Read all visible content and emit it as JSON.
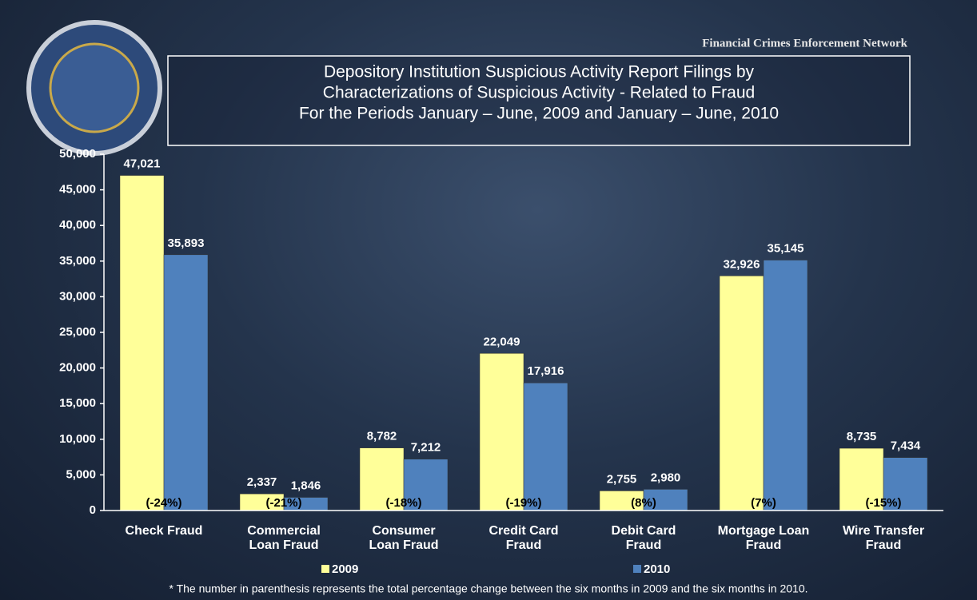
{
  "chart_data": {
    "type": "bar",
    "header": "Financial Crimes Enforcement Network",
    "title": [
      "Depository Institution Suspicious Activity Report Filings by",
      "Characterizations of Suspicious Activity - Related to Fraud",
      "For the Periods January – June, 2009 and January – June, 2010"
    ],
    "categories": [
      "Check Fraud",
      "Commercial\nLoan Fraud",
      "Consumer\nLoan Fraud",
      "Credit Card\nFraud",
      "Debit Card\nFraud",
      "Mortgage Loan\nFraud",
      "Wire Transfer\nFraud"
    ],
    "series": [
      {
        "name": "2009",
        "color": "#ffff99",
        "values": [
          47021,
          2337,
          8782,
          22049,
          2755,
          32926,
          8735
        ],
        "value_labels": [
          "47,021",
          "2,337",
          "8,782",
          "22,049",
          "2,755",
          "32,926",
          "8,735"
        ]
      },
      {
        "name": "2010",
        "color": "#4f81bd",
        "values": [
          35893,
          1846,
          7212,
          17916,
          2980,
          35145,
          7434
        ],
        "value_labels": [
          "35,893",
          "1,846",
          "7,212",
          "17,916",
          "2,980",
          "35,145",
          "7,434"
        ]
      }
    ],
    "change_labels": [
      "(-24%)",
      "(-21%)",
      "(-18%)",
      "(-19%)",
      "(8%)",
      "(7%)",
      "(-15%)"
    ],
    "ylim": [
      0,
      50000
    ],
    "yticks": [
      0,
      {
        "value": 5000,
        "label": "5,000"
      },
      {
        "value": 10000,
        "label": "10,000"
      },
      {
        "value": 15000,
        "label": "15,000"
      },
      {
        "value": 20000,
        "label": "20,000"
      },
      {
        "value": 25000,
        "label": "25,000"
      },
      {
        "value": 30000,
        "label": "30,000"
      },
      {
        "value": 35000,
        "label": "35,000"
      },
      {
        "value": 40000,
        "label": "40,000"
      },
      {
        "value": 45000,
        "label": "45,000"
      },
      {
        "value": 50000,
        "label": "50,000"
      }
    ],
    "legend": "bottom",
    "footnote": "* The number in parenthesis represents the total percentage change between the six months in 2009 and the six months in 2010."
  }
}
